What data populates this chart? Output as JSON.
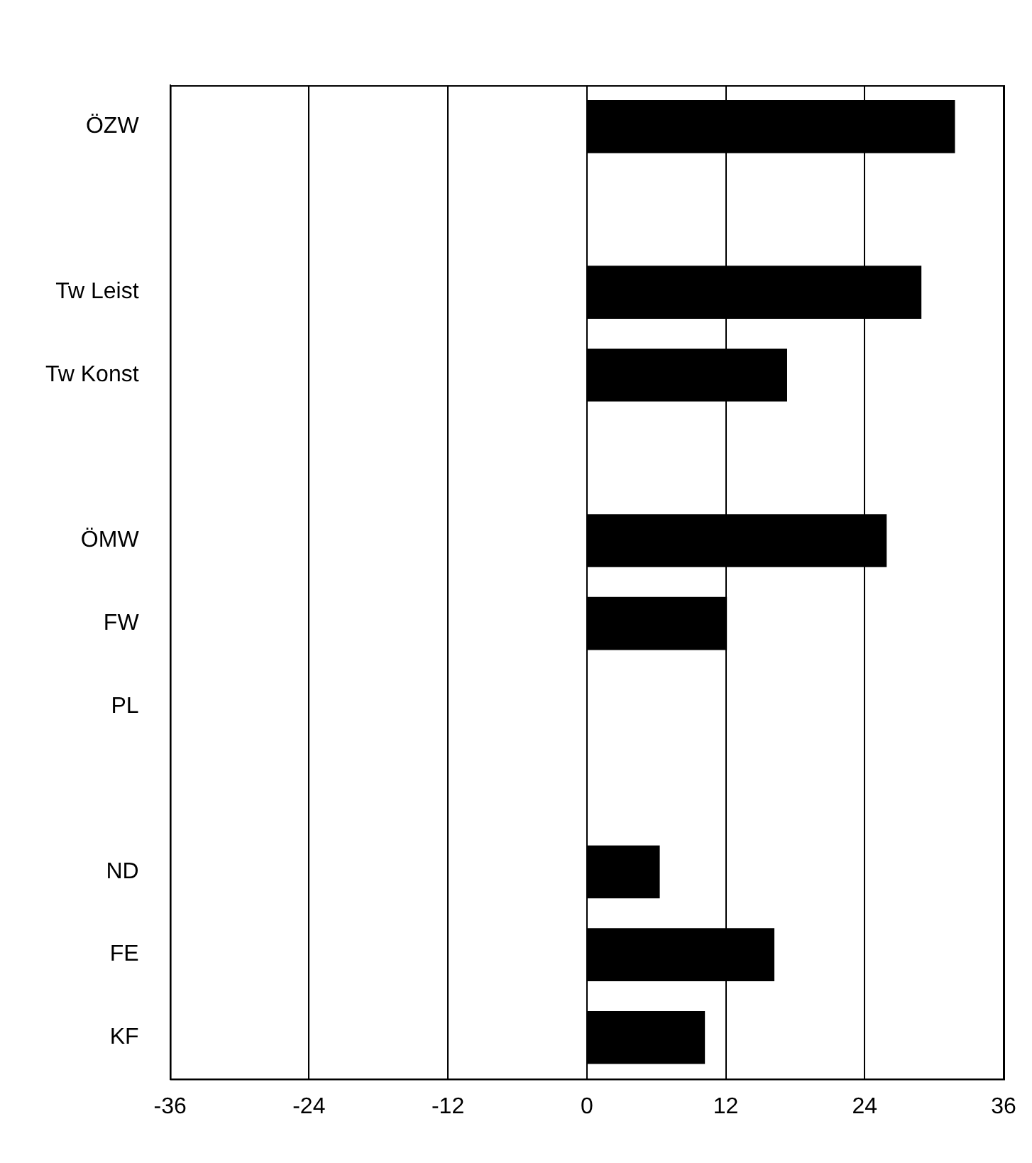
{
  "chart_data": {
    "type": "bar",
    "orientation": "horizontal",
    "categories": [
      "ÖZW",
      null,
      "Tw Leist",
      "Tw Konst",
      null,
      "ÖMW",
      "FW",
      "PL",
      null,
      "ND",
      "FE",
      "KF"
    ],
    "values": [
      31.8,
      null,
      28.9,
      17.3,
      null,
      25.9,
      12.1,
      0,
      null,
      6.3,
      16.2,
      10.2
    ],
    "color": "#000000",
    "xlim": [
      -36,
      36
    ],
    "xticks": [
      -36,
      -24,
      -12,
      0,
      12,
      24,
      36
    ],
    "grid": "x",
    "legend": false
  }
}
